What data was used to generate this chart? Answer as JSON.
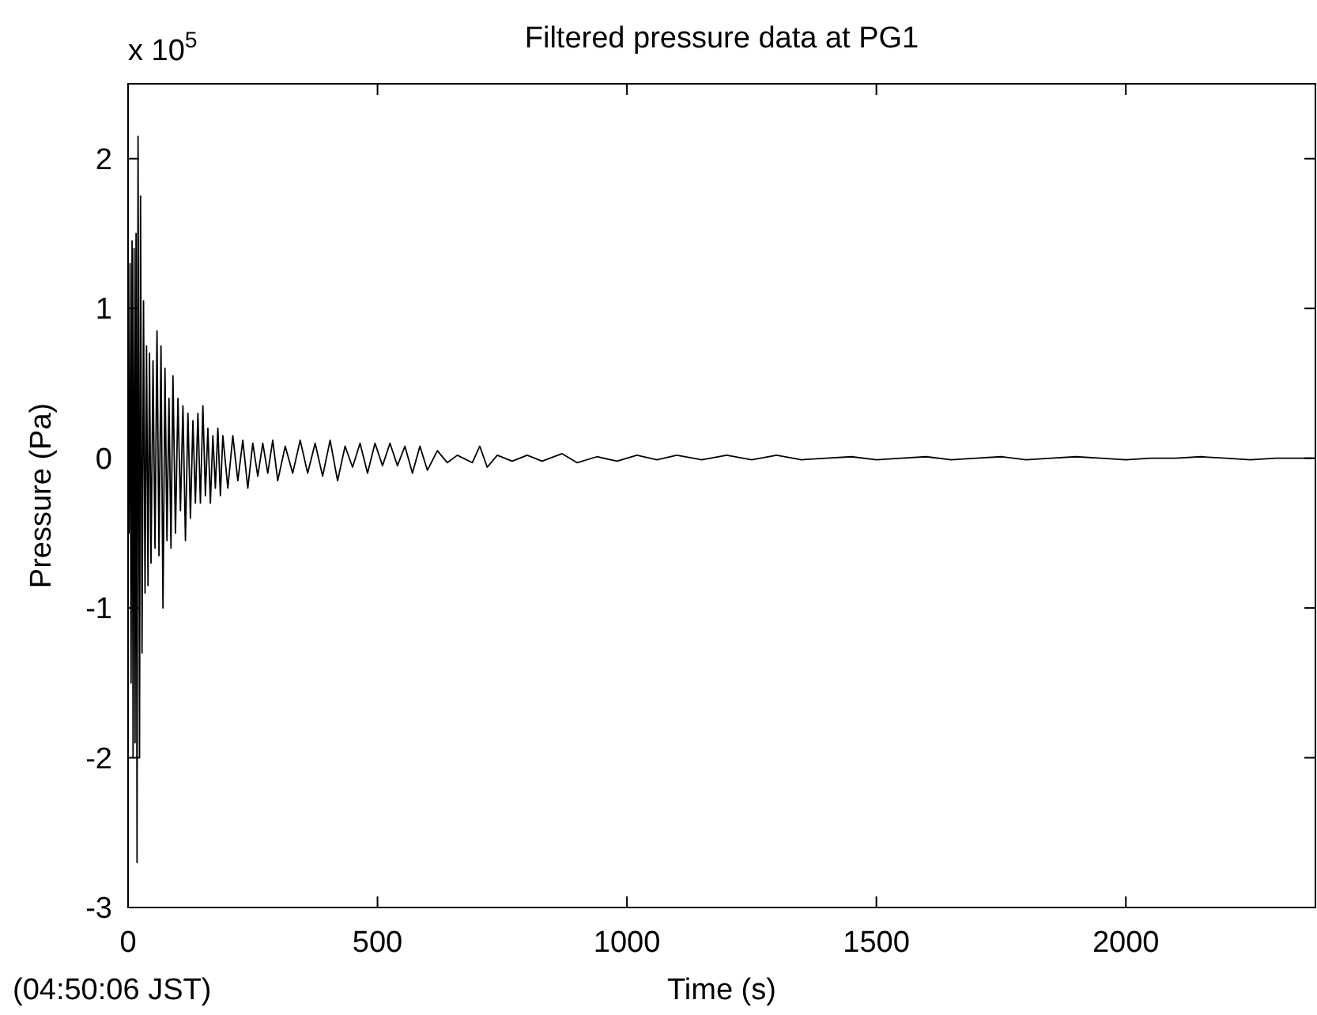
{
  "chart_data": {
    "type": "line",
    "title": "Filtered pressure data at PG1",
    "xlabel": "Time (s)",
    "ylabel": "Pressure (Pa)",
    "annotations": [
      "x 10$^{5}$",
      "(04:50:06 JST)"
    ],
    "xlim": [
      0,
      2380
    ],
    "xticks": [
      0,
      500,
      1000,
      1500,
      2000
    ],
    "ylim": [
      -3,
      2.5
    ],
    "yticks": [
      -3,
      -2,
      -1,
      0,
      1,
      2
    ],
    "grid": false,
    "marker": "none",
    "line_style": "solid",
    "series": [
      {
        "color": "#000000",
        "x": [
          0,
          2,
          4,
          6,
          8,
          10,
          12,
          14,
          16,
          18,
          20,
          23,
          25,
          28,
          31,
          34,
          37,
          40,
          43,
          46,
          50,
          54,
          58,
          62,
          66,
          70,
          74,
          78,
          82,
          86,
          90,
          95,
          100,
          105,
          110,
          115,
          120,
          125,
          130,
          135,
          140,
          145,
          150,
          155,
          160,
          165,
          170,
          175,
          180,
          185,
          190,
          200,
          210,
          220,
          230,
          240,
          250,
          260,
          270,
          280,
          290,
          300,
          315,
          330,
          345,
          360,
          375,
          390,
          405,
          420,
          435,
          450,
          465,
          480,
          495,
          510,
          525,
          540,
          555,
          570,
          585,
          600,
          620,
          640,
          660,
          690,
          705,
          720,
          740,
          770,
          800,
          830,
          870,
          900,
          940,
          980,
          1020,
          1060,
          1100,
          1150,
          1200,
          1250,
          1300,
          1350,
          1400,
          1450,
          1500,
          1550,
          1600,
          1650,
          1700,
          1750,
          1800,
          1850,
          1900,
          1950,
          2000,
          2050,
          2100,
          2150,
          2200,
          2250,
          2300,
          2376
        ],
        "values": [
          0,
          -0.5,
          1.3,
          -1.5,
          1.45,
          -2.0,
          1.4,
          -1.9,
          1.5,
          -2.7,
          2.15,
          -2.0,
          1.75,
          -1.3,
          1.05,
          -0.9,
          0.75,
          -0.85,
          0.7,
          -0.7,
          0.65,
          -0.6,
          0.85,
          -0.65,
          0.75,
          -1.0,
          0.6,
          -0.55,
          0.4,
          -0.6,
          0.55,
          -0.5,
          0.4,
          -0.35,
          0.35,
          -0.55,
          0.3,
          -0.4,
          0.25,
          -0.3,
          0.3,
          -0.3,
          0.35,
          -0.25,
          0.2,
          -0.3,
          0.15,
          -0.2,
          0.2,
          -0.25,
          0.15,
          -0.2,
          0.15,
          -0.15,
          0.12,
          -0.2,
          0.1,
          -0.12,
          0.1,
          -0.1,
          0.12,
          -0.15,
          0.08,
          -0.1,
          0.12,
          -0.1,
          0.1,
          -0.12,
          0.12,
          -0.15,
          0.08,
          -0.06,
          0.1,
          -0.1,
          0.1,
          -0.05,
          0.1,
          -0.05,
          0.08,
          -0.1,
          0.08,
          -0.08,
          0.05,
          -0.03,
          0.02,
          -0.03,
          0.08,
          -0.06,
          0.02,
          -0.02,
          0.02,
          -0.02,
          0.03,
          -0.03,
          0.01,
          -0.02,
          0.02,
          -0.01,
          0.02,
          -0.01,
          0.02,
          -0.01,
          0.02,
          -0.01,
          0,
          0.01,
          -0.01,
          0,
          0.01,
          -0.01,
          0,
          0.01,
          -0.01,
          0,
          0.01,
          0,
          -0.01,
          0,
          0,
          0.01,
          0,
          -0.01,
          0,
          0
        ]
      }
    ]
  }
}
